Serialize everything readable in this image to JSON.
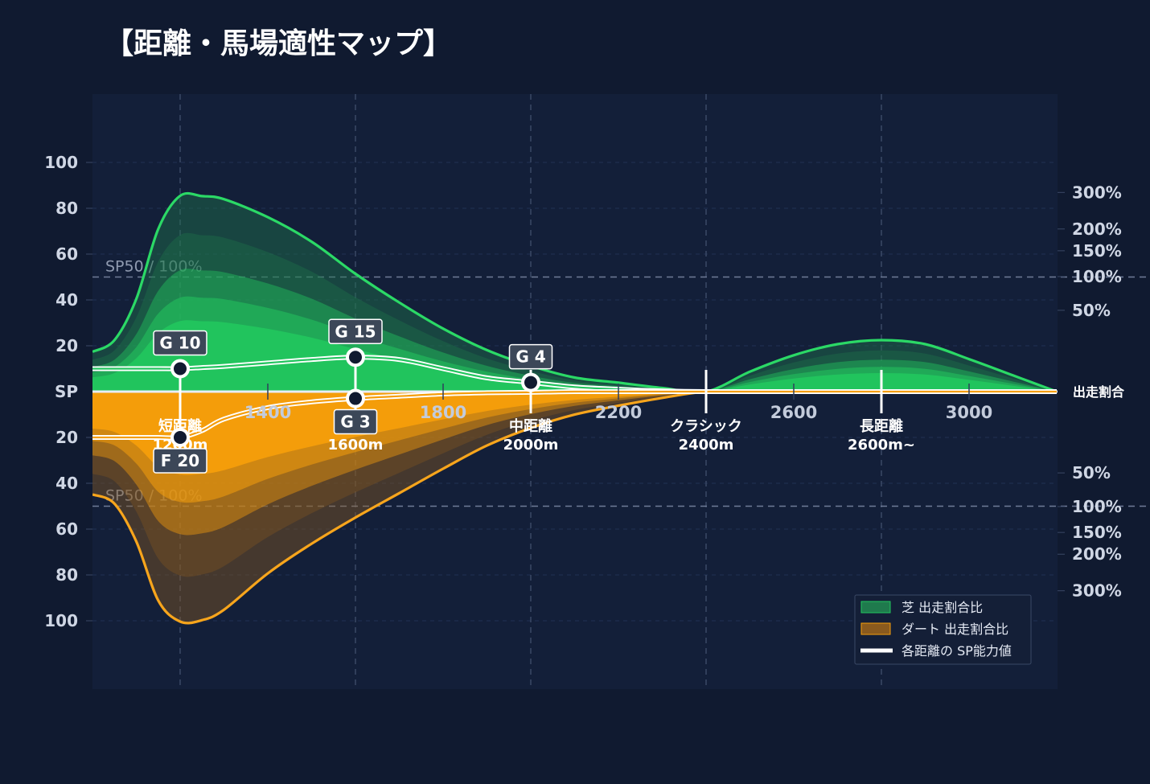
{
  "title": "【距離・馬場適性マップ】",
  "colors": {
    "background": "#101a30",
    "plot_bg": "#131f39",
    "turf": "#22c55e",
    "dirt": "#f59e0b",
    "grid": "#3a4866",
    "sp_line": "#ffffff",
    "badge_bg": "#3c4758"
  },
  "chart_data": {
    "type": "area",
    "x_axis": {
      "range": [
        1000,
        3200
      ],
      "tick_values": [
        1400,
        1800,
        2200,
        2600,
        3000
      ],
      "tick_labels": [
        "1400",
        "1800",
        "2200",
        "2600",
        "3000"
      ]
    },
    "distance_categories": [
      {
        "x": 1200,
        "name": "短距離",
        "dist": "1200m"
      },
      {
        "x": 1600,
        "name": "",
        "dist": "1600m"
      },
      {
        "x": 2000,
        "name": "中距離",
        "dist": "2000m"
      },
      {
        "x": 2400,
        "name": "クラシック",
        "dist": "2400m"
      },
      {
        "x": 2800,
        "name": "長距離",
        "dist": "2600m~"
      }
    ],
    "left_axis": {
      "center_label": "SP",
      "upper_ticks": [
        "100",
        "80",
        "60",
        "40",
        "20"
      ],
      "upper_values": [
        100,
        80,
        60,
        40,
        20
      ],
      "lower_ticks": [
        "20",
        "40",
        "60",
        "80",
        "100"
      ],
      "lower_values": [
        20,
        40,
        60,
        80,
        100
      ]
    },
    "right_axis": {
      "center_label": "出走割合",
      "upper_ticks": [
        "300%",
        "200%",
        "150%",
        "100%",
        "50%"
      ],
      "upper_values": [
        300,
        200,
        150,
        100,
        50
      ],
      "lower_ticks": [
        "50%",
        "100%",
        "150%",
        "200%",
        "300%"
      ],
      "lower_values": [
        50,
        100,
        150,
        200,
        300
      ]
    },
    "reference_lines": [
      {
        "side": "upper",
        "value": 50,
        "label": "SP50 / 100%"
      },
      {
        "side": "lower",
        "value": 50,
        "label": "SP50 / 100%"
      }
    ],
    "series": [
      {
        "name": "芝 出走割合比",
        "surface": "turf",
        "x": [
          1000,
          1050,
          1100,
          1150,
          1200,
          1250,
          1300,
          1400,
          1500,
          1600,
          1700,
          1800,
          1900,
          2000,
          2100,
          2200,
          2300,
          2400,
          2500,
          2600,
          2700,
          2800,
          2900,
          3000,
          3100,
          3200
        ],
        "ratio_pct": [
          12,
          20,
          65,
          200,
          290,
          289,
          280,
          230,
          170,
          105,
          60,
          30,
          13,
          5,
          1.5,
          0.6,
          0.1,
          0,
          3,
          10,
          17,
          20,
          17,
          8,
          2,
          0
        ],
        "sp": [
          10,
          10,
          10,
          10,
          10,
          10.5,
          11,
          12.5,
          14,
          15,
          14,
          10,
          6,
          4,
          2,
          1,
          0.3,
          0,
          0,
          0,
          0,
          0,
          0,
          0,
          0,
          0
        ],
        "markers": [
          {
            "x": 1200,
            "sp": 10,
            "label": "G 10"
          },
          {
            "x": 1600,
            "sp": 15,
            "label": "G 15"
          },
          {
            "x": 2000,
            "sp": 4,
            "label": "G 4"
          }
        ]
      },
      {
        "name": "ダート 出走割合比",
        "surface": "dirt",
        "x": [
          1000,
          1050,
          1100,
          1150,
          1200,
          1250,
          1300,
          1400,
          1500,
          1600,
          1700,
          1800,
          1900,
          2000,
          2100,
          2200,
          2300,
          2400,
          2500,
          2600,
          2700,
          2800,
          2900,
          3000,
          3100,
          3200
        ],
        "ratio_pct": [
          80,
          95,
          170,
          330,
          400,
          395,
          360,
          250,
          175,
          120,
          78,
          45,
          22,
          10,
          4,
          1.5,
          0.3,
          0,
          0,
          0,
          0,
          0,
          0,
          0,
          0,
          0
        ],
        "sp": [
          20,
          20,
          20,
          20,
          20,
          17,
          12,
          7,
          4.5,
          3,
          2,
          1,
          0.5,
          0.3,
          0,
          0,
          0,
          0,
          0,
          0,
          0,
          0,
          0,
          0,
          0,
          0
        ],
        "markers": [
          {
            "x": 1200,
            "sp": 20,
            "label": "F 20"
          },
          {
            "x": 1600,
            "sp": 3,
            "label": "G 3"
          }
        ]
      }
    ],
    "legend": {
      "placement": "bottom-right",
      "entries": [
        {
          "label": "芝 出走割合比",
          "kind": "turf"
        },
        {
          "label": "ダート 出走割合比",
          "kind": "dirt"
        },
        {
          "label": "各距離の SP能力値",
          "kind": "sp"
        }
      ]
    }
  }
}
